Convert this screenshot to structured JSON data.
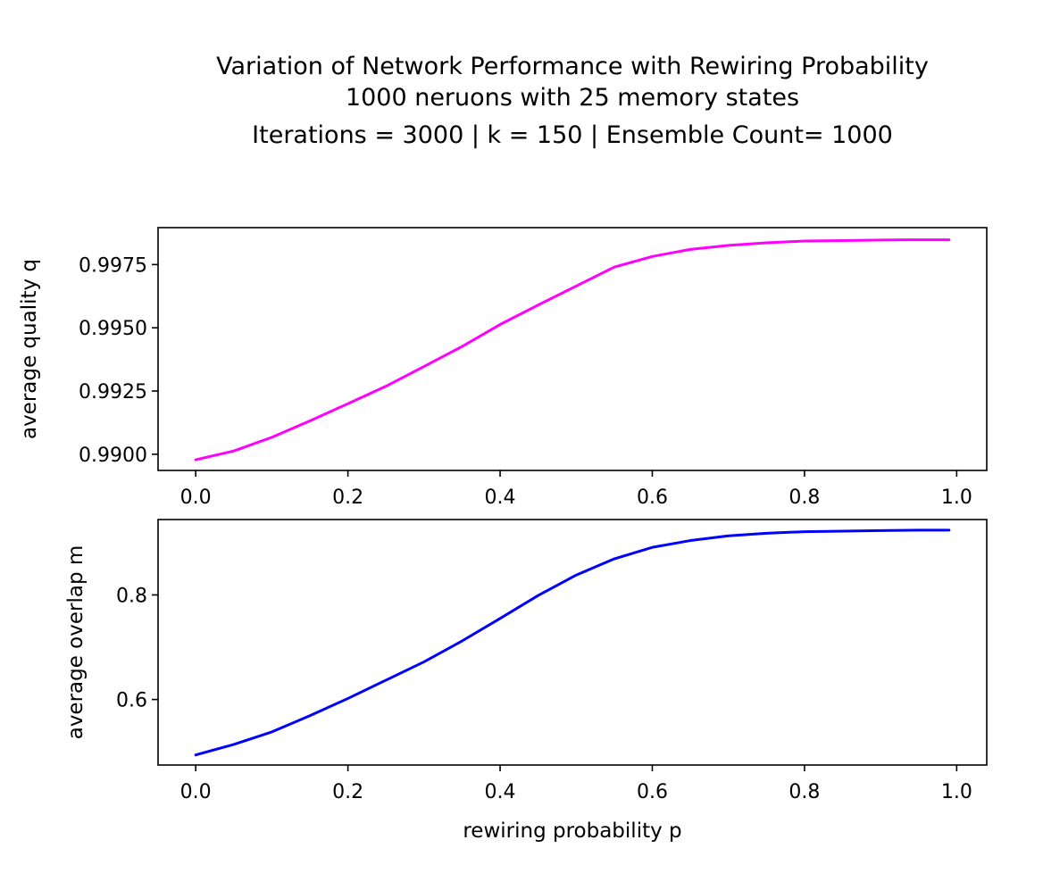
{
  "figure": {
    "title_lines": [
      "Variation of Network Performance with Rewiring Probability",
      "1000 neruons with 25 memory states",
      "Iterations = 3000 |  k = 150 | Ensemble Count= 1000"
    ]
  },
  "chart_data": [
    {
      "type": "line",
      "title": "",
      "xlabel": "",
      "ylabel": "average quality q",
      "xlim": [
        -0.0495,
        1.0395
      ],
      "ylim": [
        0.98936,
        0.99896
      ],
      "x_ticks": [
        0.0,
        0.2,
        0.4,
        0.6,
        0.8,
        1.0
      ],
      "x_tick_labels": [
        "0.0",
        "0.2",
        "0.4",
        "0.6",
        "0.8",
        "1.0"
      ],
      "y_ticks": [
        0.99,
        0.9925,
        0.995,
        0.9975
      ],
      "y_tick_labels": [
        "0.9900",
        "0.9925",
        "0.9950",
        "0.9975"
      ],
      "grid": false,
      "series": [
        {
          "color": "#ff00ff",
          "x": [
            0.0,
            0.05,
            0.1,
            0.15,
            0.2,
            0.25,
            0.3,
            0.35,
            0.4,
            0.45,
            0.5,
            0.55,
            0.6,
            0.65,
            0.7,
            0.75,
            0.8,
            0.85,
            0.9,
            0.95,
            0.99
          ],
          "y": [
            0.98978,
            0.99013,
            0.99067,
            0.99132,
            0.992,
            0.99269,
            0.99347,
            0.99426,
            0.99513,
            0.9959,
            0.99665,
            0.9974,
            0.99782,
            0.9981,
            0.99826,
            0.99836,
            0.99843,
            0.99845,
            0.99847,
            0.99848,
            0.99848
          ]
        }
      ]
    },
    {
      "type": "line",
      "title": "",
      "xlabel": "rewiring probability p",
      "ylabel": "average overlap m",
      "xlim": [
        -0.0495,
        1.0395
      ],
      "ylim": [
        0.4747,
        0.9442
      ],
      "x_ticks": [
        0.0,
        0.2,
        0.4,
        0.6,
        0.8,
        1.0
      ],
      "x_tick_labels": [
        "0.0",
        "0.2",
        "0.4",
        "0.6",
        "0.8",
        "1.0"
      ],
      "y_ticks": [
        0.6,
        0.8
      ],
      "y_tick_labels": [
        "0.6",
        "0.8"
      ],
      "grid": false,
      "series": [
        {
          "color": "#0000ff",
          "x": [
            0.0,
            0.05,
            0.1,
            0.15,
            0.2,
            0.25,
            0.3,
            0.35,
            0.4,
            0.45,
            0.5,
            0.55,
            0.6,
            0.65,
            0.7,
            0.75,
            0.8,
            0.85,
            0.9,
            0.95,
            0.99
          ],
          "y": [
            0.494,
            0.514,
            0.538,
            0.569,
            0.602,
            0.637,
            0.672,
            0.712,
            0.755,
            0.799,
            0.838,
            0.869,
            0.891,
            0.904,
            0.913,
            0.918,
            0.921,
            0.922,
            0.923,
            0.924,
            0.924
          ]
        }
      ]
    }
  ]
}
